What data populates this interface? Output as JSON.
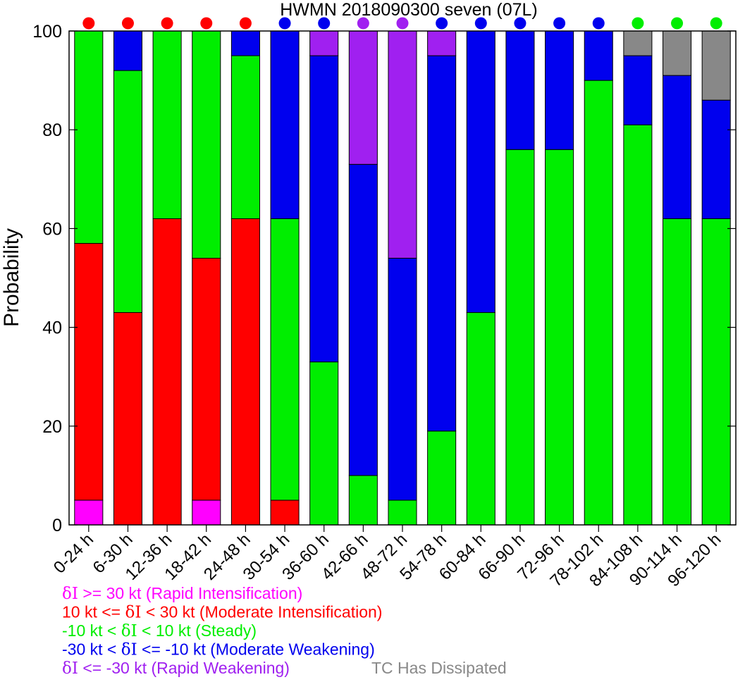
{
  "chart_data": {
    "type": "bar",
    "stacked": true,
    "title": "HWMN 2018090300 seven (07L)",
    "ylabel": "Probability",
    "xlabel": "",
    "ylim": [
      0,
      100
    ],
    "yticks": [
      0,
      20,
      40,
      60,
      80,
      100
    ],
    "grid": false,
    "categories": [
      "0-24 h",
      "6-30 h",
      "12-36 h",
      "18-42 h",
      "24-48 h",
      "30-54 h",
      "36-60 h",
      "42-66 h",
      "48-72 h",
      "54-78 h",
      "60-84 h",
      "66-90 h",
      "72-96 h",
      "78-102 h",
      "84-108 h",
      "90-114 h",
      "96-120 h"
    ],
    "series": [
      {
        "key": "ri",
        "color": "#ff00ff",
        "values": [
          5,
          0,
          0,
          5,
          0,
          0,
          0,
          0,
          0,
          0,
          0,
          0,
          0,
          0,
          0,
          0,
          0
        ]
      },
      {
        "key": "mi",
        "color": "#ff0000",
        "values": [
          52,
          43,
          62,
          49,
          62,
          5,
          0,
          0,
          0,
          0,
          0,
          0,
          0,
          0,
          0,
          0,
          0
        ]
      },
      {
        "key": "st",
        "color": "#00ee00",
        "values": [
          43,
          49,
          38,
          46,
          33,
          57,
          33,
          10,
          5,
          19,
          43,
          76,
          76,
          90,
          81,
          62,
          62
        ]
      },
      {
        "key": "mw",
        "color": "#0000ee",
        "values": [
          0,
          8,
          0,
          0,
          5,
          38,
          62,
          63,
          49,
          76,
          57,
          24,
          24,
          10,
          14,
          29,
          24
        ]
      },
      {
        "key": "rw",
        "color": "#a020f0",
        "values": [
          0,
          0,
          0,
          0,
          0,
          0,
          5,
          27,
          46,
          5,
          0,
          0,
          0,
          0,
          0,
          0,
          0
        ]
      },
      {
        "key": "dis",
        "color": "#888888",
        "values": [
          0,
          0,
          0,
          0,
          0,
          0,
          0,
          0,
          0,
          0,
          0,
          0,
          0,
          0,
          5,
          9,
          14
        ]
      }
    ],
    "top_markers": [
      "mi",
      "mi",
      "mi",
      "mi",
      "mi",
      "mw",
      "mw",
      "rw",
      "rw",
      "mw",
      "mw",
      "mw",
      "mw",
      "mw",
      "st",
      "st",
      "st"
    ],
    "legend": {
      "placement": "bottom",
      "entries": [
        {
          "key": "ri",
          "prefix": "",
          "symbol": "δI",
          "suffix": " >= 30 kt (Rapid Intensification)",
          "color": "#ff00ff"
        },
        {
          "key": "mi",
          "prefix": "10 kt <= ",
          "symbol": "δI",
          "suffix": " < 30 kt (Moderate Intensification)",
          "color": "#ff0000"
        },
        {
          "key": "st",
          "prefix": "-10 kt < ",
          "symbol": "δI",
          "suffix": " < 10 kt (Steady)",
          "color": "#00ee00"
        },
        {
          "key": "mw",
          "prefix": "-30 kt < ",
          "symbol": "δI",
          "suffix": " <= -10 kt (Moderate Weakening)",
          "color": "#0000ee"
        },
        {
          "key": "rw",
          "prefix": "",
          "symbol": "δI",
          "suffix": " <= -30 kt (Rapid Weakening)",
          "color": "#a020f0"
        },
        {
          "key": "dis",
          "prefix": "TC Has Dissipated",
          "symbol": "",
          "suffix": "",
          "color": "#888888"
        }
      ]
    }
  }
}
